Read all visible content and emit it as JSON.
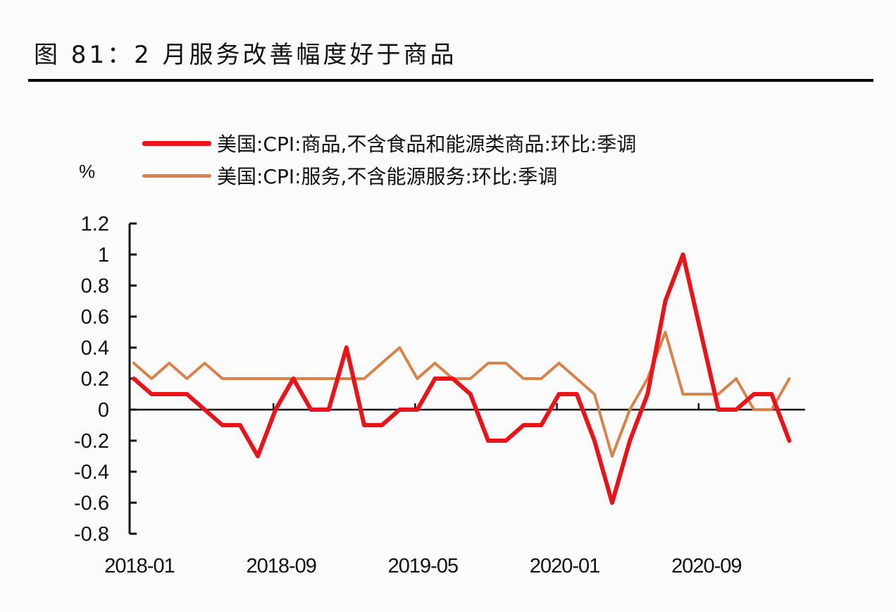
{
  "header": {
    "title": "图 81：2 月服务改善幅度好于商品"
  },
  "chart_data": {
    "type": "line",
    "title": "图 81：2 月服务改善幅度好于商品",
    "xlabel": "",
    "ylabel": "%",
    "ylim": [
      -0.8,
      1.2
    ],
    "yticks": [
      1.2,
      1,
      0.8,
      0.6,
      0.4,
      0.2,
      0,
      -0.2,
      -0.4,
      -0.6,
      -0.8
    ],
    "xtick_labels": [
      "2018-01",
      "2018-09",
      "2019-05",
      "2020-01",
      "2020-09"
    ],
    "grid": false,
    "legend_position": "top",
    "x": [
      "2018-01",
      "2018-02",
      "2018-03",
      "2018-04",
      "2018-05",
      "2018-06",
      "2018-07",
      "2018-08",
      "2018-09",
      "2018-10",
      "2018-11",
      "2018-12",
      "2019-01",
      "2019-02",
      "2019-03",
      "2019-04",
      "2019-05",
      "2019-06",
      "2019-07",
      "2019-08",
      "2019-09",
      "2019-10",
      "2019-11",
      "2019-12",
      "2020-01",
      "2020-02",
      "2020-03",
      "2020-04",
      "2020-05",
      "2020-06",
      "2020-07",
      "2020-08",
      "2020-09",
      "2020-10",
      "2020-11",
      "2020-12",
      "2021-01",
      "2021-02"
    ],
    "series": [
      {
        "name": "美国:CPI:商品,不含食品和能源类商品:环比:季调",
        "color": "#e8141a",
        "width": 6,
        "values": [
          0.2,
          0.1,
          0.1,
          0.1,
          0.0,
          -0.1,
          -0.1,
          -0.3,
          0.0,
          0.2,
          0.0,
          0.0,
          0.4,
          -0.1,
          -0.1,
          0.0,
          0.0,
          0.2,
          0.2,
          0.1,
          -0.2,
          -0.2,
          -0.1,
          -0.1,
          0.1,
          0.1,
          -0.2,
          -0.6,
          -0.2,
          0.1,
          0.7,
          1.0,
          0.5,
          0.0,
          0.0,
          0.1,
          0.1,
          -0.2
        ]
      },
      {
        "name": "美国:CPI:服务,不含能源服务:环比:季调",
        "color": "#d9834a",
        "width": 4,
        "values": [
          0.3,
          0.2,
          0.3,
          0.2,
          0.3,
          0.2,
          0.2,
          0.2,
          0.2,
          0.2,
          0.2,
          0.2,
          0.2,
          0.2,
          0.3,
          0.4,
          0.2,
          0.3,
          0.2,
          0.2,
          0.3,
          0.3,
          0.2,
          0.2,
          0.3,
          0.2,
          0.1,
          -0.3,
          0.0,
          0.2,
          0.5,
          0.1,
          0.1,
          0.1,
          0.2,
          0.0,
          0.0,
          0.2
        ]
      }
    ]
  },
  "legend": {
    "items": [
      {
        "label": "美国:CPI:商品,不含食品和能源类商品:环比:季调",
        "color": "#e8141a"
      },
      {
        "label": "美国:CPI:服务,不含能源服务:环比:季调",
        "color": "#d9834a"
      }
    ]
  },
  "axis": {
    "unit": "%"
  }
}
